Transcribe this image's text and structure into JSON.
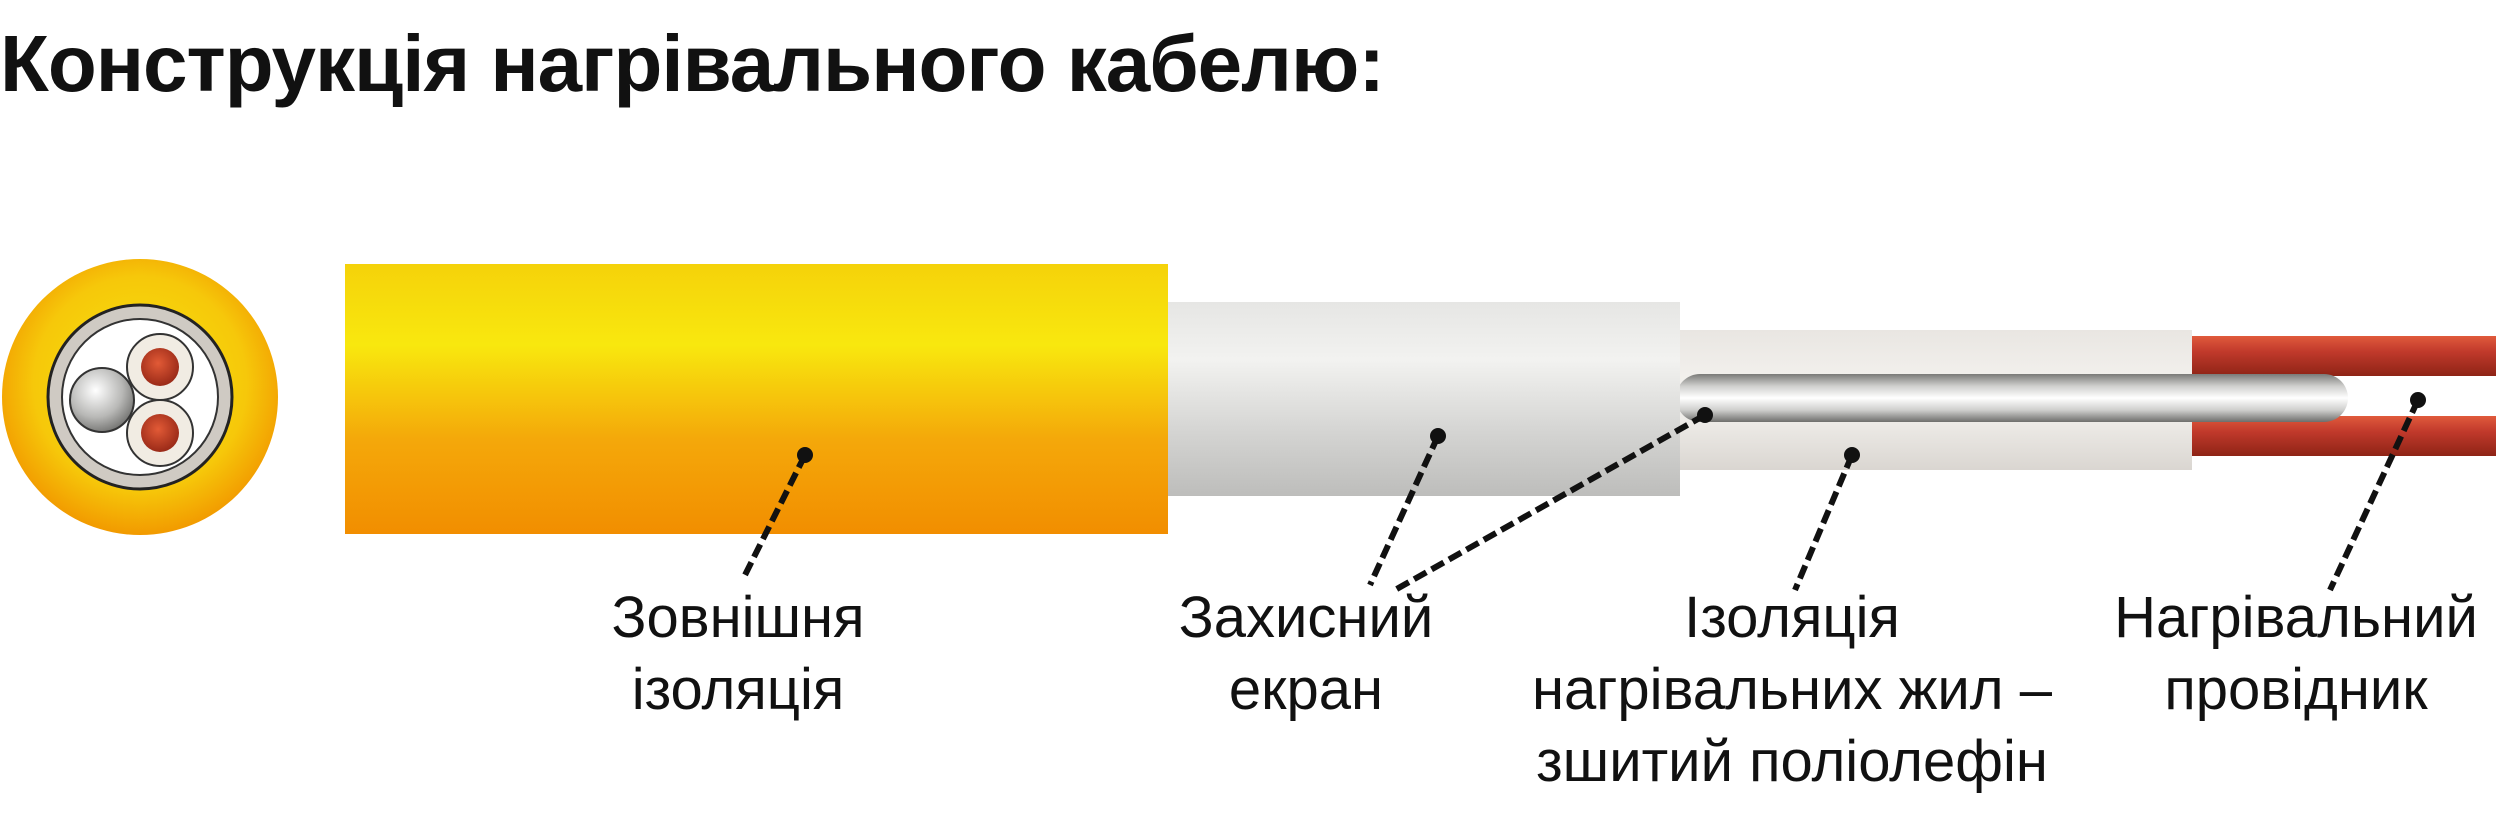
{
  "title": "Конструкція нагрівального кабелю:",
  "labels": {
    "outer_insulation": {
      "line1": "Зовнішня",
      "line2": "ізоляція"
    },
    "shield": {
      "line1": "Захисний",
      "line2": "екран"
    },
    "conductor_insulation": {
      "line1": "Ізоляція",
      "line2": "нагрівальних жил –",
      "line3": "зшитий поліолефін"
    },
    "heating_conductor": {
      "line1": "Нагрівальний",
      "line2": "провідник"
    }
  },
  "colors": {
    "outer_yellow": "#F7E40D",
    "outer_orange": "#F39200",
    "shield_grey": "#D6D6D4",
    "conductor_red": "#C0392B",
    "leader_line": "#111111"
  }
}
